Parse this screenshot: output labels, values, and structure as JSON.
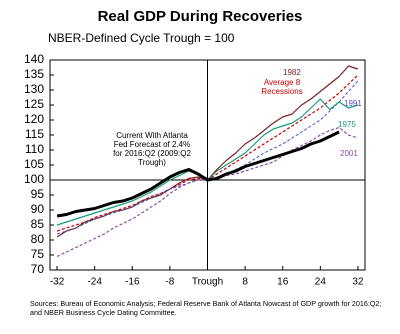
{
  "chart_data": {
    "type": "line",
    "title": "Real GDP During Recoveries",
    "subtitle": "NBER-Defined Cycle Trough = 100",
    "source": "Sources: Bureau of Economic Analysis; Federal Reserve Bank of Atlanta Nowcast of GDP growth for 2016:Q2; and NBER Business Cycle Dating Committee.",
    "x": [
      -32,
      -30,
      -28,
      -26,
      -24,
      -22,
      -20,
      -18,
      -16,
      -14,
      -12,
      -10,
      -8,
      -6,
      -4,
      -2,
      0,
      2,
      4,
      6,
      8,
      10,
      12,
      14,
      16,
      18,
      20,
      22,
      24,
      26,
      28,
      30,
      32
    ],
    "xlim": [
      -33.5,
      33.5
    ],
    "xticks": [
      -32,
      -24,
      -16,
      -8,
      {
        "value": 0,
        "label": "Trough"
      },
      8,
      16,
      24,
      32
    ],
    "ylim": [
      70,
      140
    ],
    "yticks": [
      70,
      75,
      80,
      85,
      90,
      95,
      100,
      105,
      110,
      115,
      120,
      125,
      130,
      135,
      140
    ],
    "reference_y": 100,
    "series": [
      {
        "name": "Current With Atlanta Fed Forecast of 2.4% for 2016:Q2 (2009:Q2  Trough)",
        "color": "#000000",
        "style": "solid",
        "width": 3,
        "values": [
          88,
          88.5,
          89.5,
          90,
          90.5,
          91.5,
          92.5,
          93,
          94,
          95.5,
          97,
          99,
          101,
          102.5,
          103.5,
          102,
          100,
          100.5,
          102,
          103,
          104.5,
          105.5,
          106.5,
          107.5,
          108.5,
          109.5,
          110.5,
          112,
          113,
          114.5,
          116,
          null,
          null
        ]
      },
      {
        "name": "Average 8 Recessions",
        "color": "#cc0000",
        "style": "dashed",
        "width": 1.2,
        "values": [
          83,
          84,
          85,
          86,
          87.5,
          88.5,
          89.5,
          90.5,
          91.5,
          93,
          94.5,
          95.5,
          97,
          98.5,
          100,
          100.5,
          100,
          102,
          104,
          106,
          108,
          110,
          112,
          114,
          116,
          118,
          120,
          122,
          124,
          126.5,
          129,
          132,
          135
        ]
      },
      {
        "name": "1982",
        "color": "#7b2222",
        "style": "solid",
        "width": 1.2,
        "values": [
          81,
          83,
          84,
          86,
          87,
          88,
          89.5,
          90,
          91,
          93,
          94,
          95,
          97,
          99,
          100.5,
          101,
          100,
          103.5,
          106.5,
          109,
          112,
          114,
          116.5,
          119,
          121,
          122,
          125,
          127,
          129.5,
          132,
          134.5,
          138,
          137
        ]
      },
      {
        "name": "1991",
        "color": "#4455cc",
        "style": "dashed",
        "width": 1,
        "values": [
          82,
          83,
          84,
          85.5,
          87,
          88,
          89,
          90,
          91,
          92.5,
          94,
          95.5,
          97,
          98,
          99,
          100,
          100,
          101,
          102,
          103.5,
          105,
          107,
          109,
          110.5,
          112,
          114,
          116,
          118,
          120,
          123,
          126,
          129.5,
          133
        ]
      },
      {
        "name": "1975",
        "color": "#1a9a7a",
        "style": "solid",
        "width": 1.2,
        "values": [
          85,
          86,
          87,
          88,
          89,
          90,
          91,
          92,
          93,
          94.5,
          96,
          98,
          100,
          101.5,
          103,
          102,
          100,
          103,
          105,
          107,
          109,
          112,
          115,
          117,
          118,
          119,
          121,
          124,
          127,
          123.5,
          126,
          124,
          125
        ]
      },
      {
        "name": "2001",
        "color": "#8a4fb0",
        "style": "dashed",
        "width": 1.2,
        "values": [
          74.5,
          76,
          77.5,
          79,
          80.5,
          82,
          84,
          85.5,
          87,
          89,
          91,
          93,
          95.5,
          97.5,
          99,
          100,
          100,
          100.5,
          101.5,
          102,
          103,
          104,
          105,
          106,
          108,
          110,
          111.5,
          113,
          115,
          116.5,
          117.5,
          115,
          114
        ]
      }
    ]
  }
}
